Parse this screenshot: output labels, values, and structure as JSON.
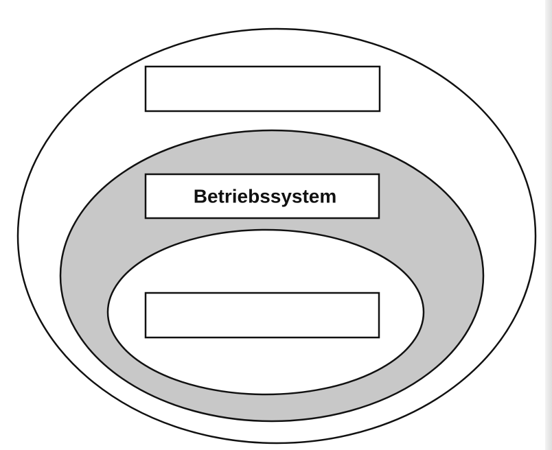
{
  "diagram": {
    "outer_layer": {
      "label": "",
      "fill": "#ffffff"
    },
    "middle_layer": {
      "label": "Betriebssystem",
      "fill": "#c8c8c8"
    },
    "inner_layer": {
      "label": "",
      "fill": "#ffffff"
    },
    "stroke_color": "#111111"
  }
}
